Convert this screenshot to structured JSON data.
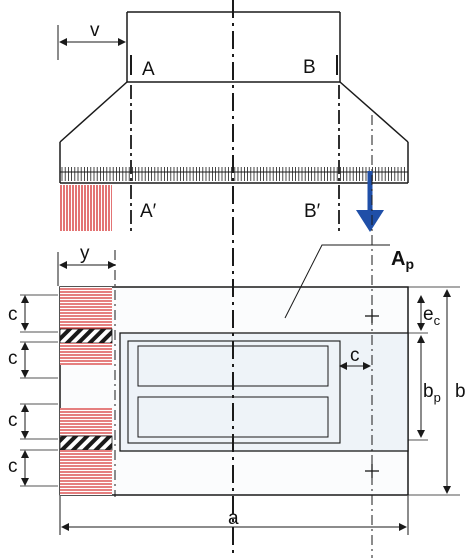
{
  "labels": {
    "v": "v",
    "A": "A",
    "B": "B",
    "A_prime": "A′",
    "B_prime": "B′",
    "y": "y",
    "Ap_main": "A",
    "Ap_sub": "p",
    "c": "c",
    "e_main": "e",
    "e_sub": "c",
    "bp_main": "b",
    "bp_sub": "p",
    "b": "b",
    "a": "a"
  },
  "colors": {
    "line": "#1a1a1a",
    "hatch_red": "#d42a2a",
    "arrow_blue": "#1f4fa8",
    "fill_light": "#eef3f8"
  },
  "icons": {
    "load_arrow": "down-arrow-icon",
    "axis_mark": "plus-icon"
  }
}
